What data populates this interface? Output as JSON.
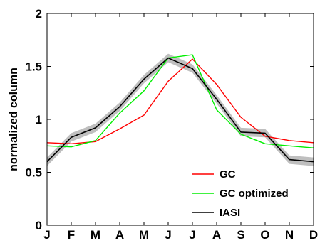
{
  "chart_data": {
    "type": "line",
    "categories": [
      "J",
      "F",
      "M",
      "A",
      "M",
      "J",
      "J",
      "A",
      "S",
      "O",
      "N",
      "D"
    ],
    "ylabel": "normalized column",
    "xlabel": "",
    "ylim": [
      0,
      2
    ],
    "yticks": [
      "0",
      "0.5",
      "1",
      "1.5",
      "2"
    ],
    "grid": false,
    "legend_position": "bottom-right",
    "series": [
      {
        "name": "GC",
        "color": "#ff0000",
        "values": [
          0.78,
          0.77,
          0.79,
          0.91,
          1.04,
          1.36,
          1.57,
          1.33,
          1.02,
          0.84,
          0.8,
          0.78
        ],
        "uncertainty": 0
      },
      {
        "name": "GC optimized",
        "color": "#00ee00",
        "values": [
          0.75,
          0.74,
          0.8,
          1.06,
          1.27,
          1.58,
          1.61,
          1.09,
          0.86,
          0.77,
          0.75,
          0.73
        ],
        "uncertainty": 0
      },
      {
        "name": "IASI",
        "color": "#000000",
        "values": [
          0.6,
          0.83,
          0.92,
          1.12,
          1.38,
          1.58,
          1.48,
          1.19,
          0.88,
          0.87,
          0.62,
          0.6
        ],
        "uncertainty": 0.04
      }
    ]
  }
}
